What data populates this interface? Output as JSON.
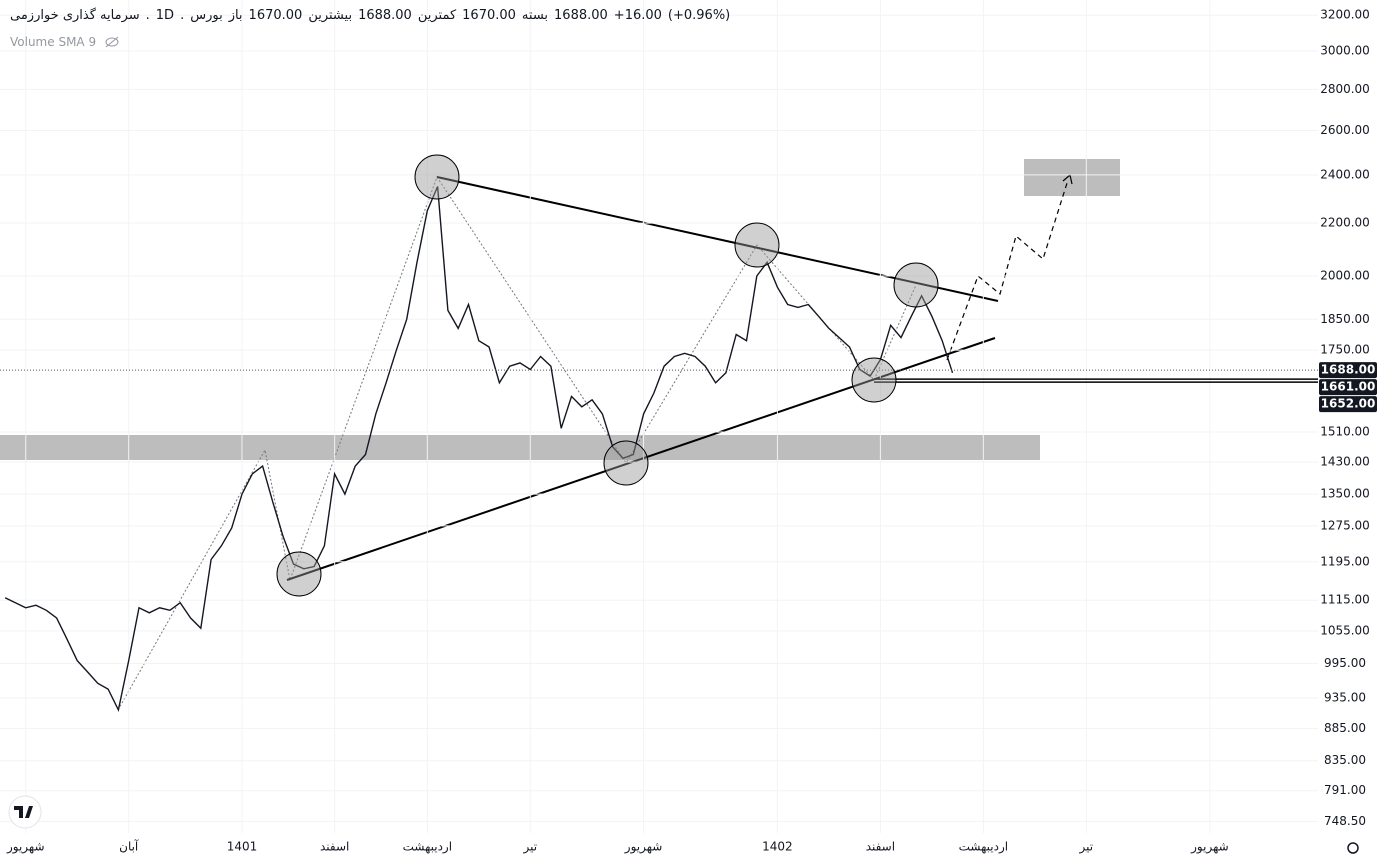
{
  "chart_data": {
    "type": "line",
    "header": {
      "name": "سرمایه گذاری خوارزمی",
      "interval": "1D",
      "exchange": "بورس",
      "open_label": "باز",
      "open": "1670.00",
      "high_label": "بیشترین",
      "high": "1688.00",
      "low_label": "کمترین",
      "low": "1670.00",
      "close_label": "بسته",
      "close": "1688.00",
      "change": "+16.00",
      "change_pct": "(+0.96%)"
    },
    "indicator": "Volume SMA 9",
    "categories": [
      null,
      null,
      "شهریور",
      null,
      null,
      null,
      null,
      null,
      null,
      null,
      null,
      null,
      "آبان",
      null,
      null,
      null,
      null,
      null,
      null,
      null,
      null,
      null,
      null,
      "1401",
      null,
      null,
      null,
      null,
      null,
      null,
      null,
      null,
      "اسفند",
      null,
      null,
      null,
      null,
      null,
      null,
      null,
      null,
      "اردیبهشت",
      null,
      null,
      null,
      null,
      null,
      null,
      null,
      null,
      null,
      "تیر",
      null,
      null,
      null,
      null,
      null,
      null,
      null,
      null,
      null,
      null,
      "شهریور",
      null,
      null,
      null,
      null,
      null,
      null,
      null,
      null,
      null,
      null,
      null,
      null,
      "1402",
      null,
      null,
      null,
      null,
      null,
      null,
      null,
      null,
      null,
      "اسفند",
      null,
      null,
      null,
      null,
      null,
      null,
      null,
      null,
      null,
      "اردیبهشت",
      null,
      null,
      null,
      null,
      null,
      null,
      null,
      null,
      null,
      "تیر",
      null,
      null,
      null,
      null,
      null,
      null,
      null,
      null,
      null,
      null,
      null,
      "شهریور",
      null,
      null,
      null,
      null,
      null,
      null,
      null,
      null,
      null,
      null
    ],
    "series": [
      {
        "color": "#131722",
        "values": [
          1120,
          1110,
          1100,
          1105,
          1095,
          1080,
          1040,
          1000,
          980,
          960,
          950,
          915,
          1000,
          1100,
          1090,
          1100,
          1095,
          1110,
          1080,
          1060,
          1200,
          1230,
          1270,
          1350,
          1400,
          1420,
          1330,
          1250,
          1190,
          1180,
          1185,
          1230,
          1400,
          1350,
          1420,
          1450,
          1560,
          1650,
          1750,
          1850,
          2050,
          2250,
          2350,
          1880,
          1820,
          1900,
          1780,
          1760,
          1650,
          1700,
          1710,
          1690,
          1730,
          1700,
          1520,
          1610,
          1580,
          1600,
          1560,
          1470,
          1440,
          1450,
          1560,
          1620,
          1700,
          1730,
          1740,
          1730,
          1700,
          1650,
          1680,
          1800,
          1780,
          2000,
          2050,
          1960,
          1900,
          1890,
          1900,
          1860,
          1820,
          1790,
          1760,
          1690,
          1670,
          1720,
          1830,
          1790,
          1860,
          1930,
          1860,
          1780,
          1680,
          null,
          null,
          null,
          null,
          null,
          null,
          null,
          null,
          null,
          null,
          null,
          null,
          null,
          null,
          null,
          null,
          null,
          null,
          null,
          null,
          null,
          null,
          null,
          null,
          null,
          null,
          null,
          null,
          null,
          null,
          null,
          null,
          null,
          null,
          null
        ]
      }
    ],
    "log_scale": true,
    "grid": true,
    "ylim": [
      733,
      3289
    ],
    "yticks": [
      {
        "value": 3200,
        "label": "3200.00"
      },
      {
        "value": 3000,
        "label": "3000.00"
      },
      {
        "value": 2800,
        "label": "2800.00"
      },
      {
        "value": 2600,
        "label": "2600.00"
      },
      {
        "value": 2400,
        "label": "2400.00"
      },
      {
        "value": 2200,
        "label": "2200.00"
      },
      {
        "value": 2000,
        "label": "2000.00"
      },
      {
        "value": 1850,
        "label": "1850.00"
      },
      {
        "value": 1750,
        "label": "1750.00"
      },
      {
        "value": 1510,
        "label": "1510.00"
      },
      {
        "value": 1430,
        "label": "1430.00"
      },
      {
        "value": 1350,
        "label": "1350.00"
      },
      {
        "value": 1275,
        "label": "1275.00"
      },
      {
        "value": 1195,
        "label": "1195.00"
      },
      {
        "value": 1115,
        "label": "1115.00"
      },
      {
        "value": 1055,
        "label": "1055.00"
      },
      {
        "value": 995,
        "label": "995.00"
      },
      {
        "value": 935,
        "label": "935.00"
      },
      {
        "value": 885,
        "label": "885.00"
      },
      {
        "value": 835,
        "label": "835.00"
      },
      {
        "value": 791,
        "label": "791.00"
      },
      {
        "value": 748.5,
        "label": "748.50"
      }
    ],
    "price_labels": [
      {
        "value": 1688,
        "label": "1688.00"
      },
      {
        "value": 1661,
        "label": "1661.00"
      },
      {
        "value": 1652,
        "label": "1652.00"
      }
    ]
  }
}
